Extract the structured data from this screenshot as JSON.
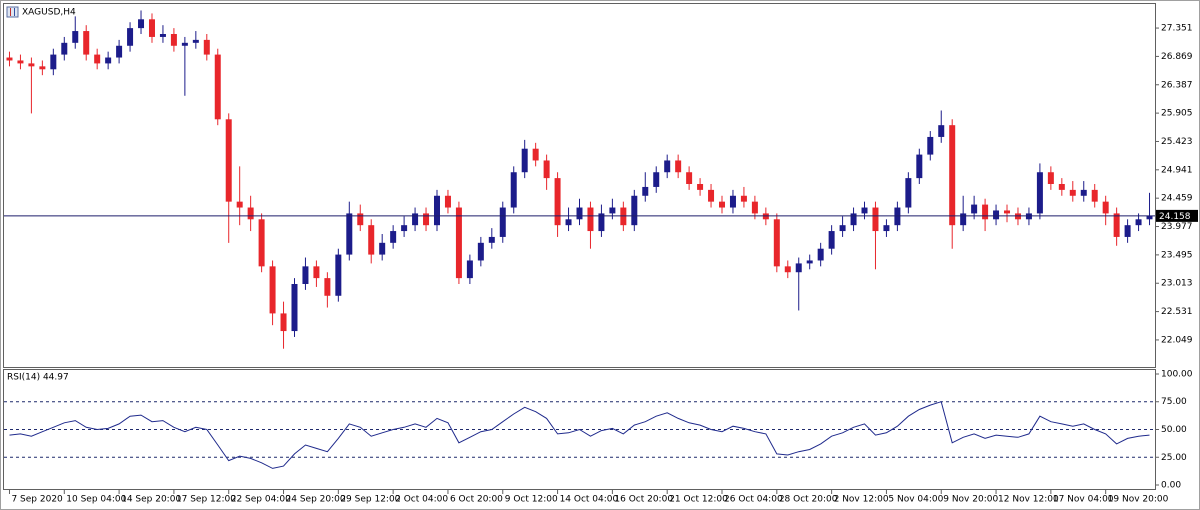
{
  "chart_data": [
    {
      "type": "candlestick",
      "title": "XAGUSD,H4",
      "categories": [
        "7 Sep 2020",
        null,
        null,
        null,
        null,
        "10 Sep 04:00",
        null,
        null,
        null,
        null,
        "14 Sep 20:00",
        null,
        null,
        null,
        null,
        "17 Sep 12:00",
        null,
        null,
        null,
        null,
        "22 Sep 04:00",
        null,
        null,
        null,
        null,
        "24 Sep 20:00",
        null,
        null,
        null,
        null,
        "29 Sep 12:00",
        null,
        null,
        null,
        null,
        "2 Oct 04:00",
        null,
        null,
        null,
        null,
        "6 Oct 20:00",
        null,
        null,
        null,
        null,
        "9 Oct 12:00",
        null,
        null,
        null,
        null,
        "14 Oct 04:00",
        null,
        null,
        null,
        null,
        "16 Oct 20:00",
        null,
        null,
        null,
        null,
        "21 Oct 12:00",
        null,
        null,
        null,
        null,
        "26 Oct 04:00",
        null,
        null,
        null,
        null,
        "28 Oct 20:00",
        null,
        null,
        null,
        null,
        "2 Nov 12:00",
        null,
        null,
        null,
        null,
        "5 Nov 04:00",
        null,
        null,
        null,
        null,
        "9 Nov 20:00",
        null,
        null,
        null,
        null,
        "12 Nov 12:00",
        null,
        null,
        null,
        null,
        "17 Nov 04:00",
        null,
        null,
        null,
        null,
        "19 Nov 20:00",
        null,
        null,
        null,
        null
      ],
      "open": [
        26.85,
        26.8,
        26.75,
        26.7,
        26.65,
        26.9,
        27.1,
        27.3,
        26.9,
        26.75,
        26.85,
        27.05,
        27.35,
        27.5,
        27.2,
        27.25,
        27.05,
        27.1,
        27.15,
        26.9,
        25.8,
        24.4,
        24.3,
        24.1,
        23.3,
        22.5,
        22.2,
        23.0,
        23.3,
        23.1,
        22.8,
        23.5,
        24.2,
        24.0,
        23.5,
        23.7,
        23.9,
        24.0,
        24.2,
        24.0,
        24.5,
        24.3,
        23.1,
        23.4,
        23.7,
        23.8,
        24.3,
        24.9,
        25.3,
        25.1,
        24.8,
        24.0,
        24.1,
        24.3,
        23.9,
        24.2,
        24.3,
        24.0,
        24.5,
        24.65,
        24.9,
        25.1,
        24.9,
        24.7,
        24.6,
        24.4,
        24.3,
        24.5,
        24.4,
        24.2,
        24.1,
        23.3,
        23.2,
        23.35,
        23.4,
        23.6,
        23.9,
        24.0,
        24.2,
        24.3,
        23.9,
        24.0,
        24.3,
        24.8,
        25.2,
        25.5,
        25.7,
        24.0,
        24.2,
        24.35,
        24.1,
        24.25,
        24.2,
        24.1,
        24.2,
        24.9,
        24.7,
        24.6,
        24.5,
        24.6,
        24.4,
        24.2,
        23.8,
        24.0,
        24.1
      ],
      "high": [
        26.95,
        26.9,
        26.85,
        26.8,
        27.0,
        27.2,
        27.55,
        27.4,
        27.0,
        26.95,
        27.15,
        27.45,
        27.65,
        27.6,
        27.4,
        27.35,
        27.2,
        27.3,
        27.25,
        27.0,
        25.9,
        25.0,
        24.5,
        24.2,
        23.4,
        22.7,
        23.1,
        23.45,
        23.4,
        23.2,
        23.6,
        24.4,
        24.35,
        24.1,
        23.85,
        24.0,
        24.15,
        24.3,
        24.3,
        24.6,
        24.6,
        24.4,
        23.5,
        23.8,
        23.95,
        24.4,
        25.0,
        25.45,
        25.4,
        25.2,
        24.9,
        24.3,
        24.45,
        24.4,
        24.35,
        24.45,
        24.4,
        24.6,
        24.9,
        25.0,
        25.2,
        25.2,
        25.0,
        24.8,
        24.7,
        24.5,
        24.6,
        24.65,
        24.5,
        24.3,
        24.2,
        23.4,
        23.45,
        23.5,
        23.7,
        24.0,
        24.15,
        24.3,
        24.4,
        24.4,
        24.1,
        24.4,
        24.9,
        25.3,
        25.6,
        25.95,
        25.8,
        24.5,
        24.5,
        24.45,
        24.35,
        24.35,
        24.3,
        24.3,
        25.05,
        25.0,
        24.8,
        24.75,
        24.75,
        24.7,
        24.5,
        24.3,
        24.1,
        24.2,
        24.55
      ],
      "low": [
        26.7,
        26.65,
        25.9,
        26.55,
        26.55,
        26.8,
        27.0,
        26.8,
        26.65,
        26.65,
        26.75,
        26.95,
        27.25,
        27.1,
        27.1,
        26.95,
        26.2,
        27.0,
        26.8,
        25.7,
        23.7,
        24.0,
        23.9,
        23.2,
        22.3,
        21.9,
        22.1,
        22.9,
        22.95,
        22.6,
        22.7,
        23.4,
        23.9,
        23.35,
        23.4,
        23.6,
        23.8,
        23.9,
        23.9,
        23.9,
        24.2,
        23.0,
        23.0,
        23.3,
        23.6,
        23.7,
        24.2,
        24.8,
        25.0,
        24.6,
        23.8,
        23.9,
        24.0,
        23.6,
        23.8,
        24.1,
        23.9,
        23.9,
        24.4,
        24.55,
        24.8,
        24.8,
        24.6,
        24.5,
        24.3,
        24.2,
        24.2,
        24.3,
        24.1,
        24.0,
        23.2,
        23.1,
        22.55,
        23.25,
        23.3,
        23.5,
        23.8,
        23.9,
        24.1,
        23.25,
        23.8,
        23.9,
        24.2,
        24.7,
        25.1,
        25.4,
        23.6,
        23.9,
        24.1,
        23.9,
        24.0,
        24.05,
        24.0,
        24.0,
        24.1,
        24.6,
        24.5,
        24.4,
        24.4,
        24.3,
        24.0,
        23.65,
        23.7,
        23.9,
        24.0
      ],
      "close": [
        26.8,
        26.75,
        26.7,
        26.65,
        26.9,
        27.1,
        27.3,
        26.9,
        26.75,
        26.85,
        27.05,
        27.35,
        27.5,
        27.2,
        27.25,
        27.05,
        27.1,
        27.15,
        26.9,
        25.8,
        24.4,
        24.3,
        24.1,
        23.3,
        22.5,
        22.2,
        23.0,
        23.3,
        23.1,
        22.8,
        23.5,
        24.2,
        24.0,
        23.5,
        23.7,
        23.9,
        24.0,
        24.2,
        24.0,
        24.5,
        24.3,
        23.1,
        23.4,
        23.7,
        23.8,
        24.3,
        24.9,
        25.3,
        25.1,
        24.8,
        24.0,
        24.1,
        24.3,
        23.9,
        24.2,
        24.3,
        24.0,
        24.5,
        24.65,
        24.9,
        25.1,
        24.9,
        24.7,
        24.6,
        24.4,
        24.3,
        24.5,
        24.4,
        24.2,
        24.1,
        23.3,
        23.2,
        23.35,
        23.4,
        23.6,
        23.9,
        24.0,
        24.2,
        24.3,
        23.9,
        24.0,
        24.3,
        24.8,
        25.2,
        25.5,
        25.7,
        24.0,
        24.2,
        24.35,
        24.1,
        24.25,
        24.2,
        24.1,
        24.2,
        24.9,
        24.7,
        24.6,
        24.5,
        24.6,
        24.4,
        24.2,
        23.8,
        24.0,
        24.1,
        24.158
      ],
      "up_color": "#1c1c8a",
      "down_color": "#e8262b",
      "ylim": [
        21.589,
        27.76
      ],
      "yticks": [
        22.049,
        22.531,
        23.013,
        23.495,
        23.977,
        24.459,
        24.941,
        25.423,
        25.905,
        26.387,
        26.869,
        27.351
      ],
      "current_price": 24.158
    },
    {
      "type": "line",
      "title": "RSI(14) 44.97",
      "color": "#1f2a8c",
      "values": [
        45,
        46,
        44,
        48,
        52,
        56,
        58,
        52,
        50,
        51,
        55,
        62,
        63,
        57,
        58,
        52,
        48,
        52,
        50,
        36,
        22,
        26,
        24,
        20,
        15,
        17,
        28,
        36,
        33,
        30,
        42,
        55,
        52,
        44,
        47,
        50,
        52,
        55,
        52,
        60,
        56,
        38,
        43,
        48,
        50,
        57,
        64,
        70,
        66,
        60,
        46,
        47,
        50,
        44,
        49,
        51,
        46,
        54,
        57,
        62,
        65,
        60,
        56,
        54,
        50,
        48,
        53,
        51,
        48,
        46,
        28,
        27,
        30,
        32,
        37,
        44,
        47,
        52,
        55,
        45,
        47,
        53,
        62,
        68,
        72,
        75,
        38,
        43,
        46,
        42,
        45,
        44,
        43,
        46,
        62,
        57,
        55,
        53,
        55,
        50,
        46,
        37,
        42,
        44,
        44.97
      ],
      "ylim": [
        -3.6,
        103.6
      ],
      "yticks": [
        {
          "value": 0,
          "label": "0.00"
        },
        {
          "value": 25,
          "label": "25.00"
        },
        {
          "value": 50,
          "label": "50.00"
        },
        {
          "value": 75,
          "label": "75.00"
        },
        {
          "value": 100,
          "label": "100.00"
        }
      ],
      "levels": [
        25,
        50,
        75
      ]
    }
  ]
}
